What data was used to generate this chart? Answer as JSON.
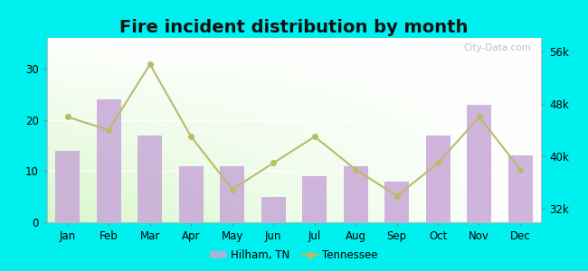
{
  "title": "Fire incident distribution by month",
  "months": [
    "Jan",
    "Feb",
    "Mar",
    "Apr",
    "May",
    "Jun",
    "Jul",
    "Aug",
    "Sep",
    "Oct",
    "Nov",
    "Dec"
  ],
  "hilham_values": [
    14,
    24,
    17,
    11,
    11,
    5,
    9,
    11,
    8,
    17,
    23,
    13
  ],
  "tennessee_values": [
    46000,
    44000,
    54000,
    43000,
    35000,
    39000,
    43000,
    38000,
    34000,
    39000,
    46000,
    38000
  ],
  "bar_color": "#C8A8D8",
  "line_color": "#b8bc6a",
  "background_outer": "#00EFEF",
  "left_ylim": [
    0,
    36
  ],
  "left_yticks": [
    0,
    10,
    20,
    30
  ],
  "right_ylim": [
    30000,
    58000
  ],
  "right_yticks": [
    32000,
    40000,
    48000,
    56000
  ],
  "right_yticklabels": [
    "32k",
    "40k",
    "48k",
    "56k"
  ],
  "title_fontsize": 14,
  "legend_hilham": "Hilham, TN",
  "legend_tennessee": "Tennessee",
  "watermark": "City-Data.com"
}
